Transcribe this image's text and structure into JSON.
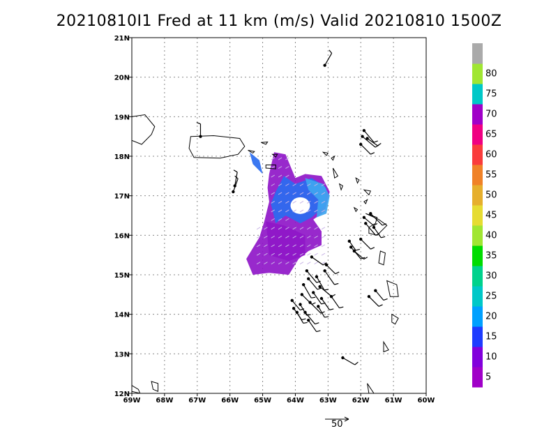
{
  "title": "20210810I1 Fred at 11 km (m/s) Valid 20210810 1500Z",
  "reference_vector_label": "50",
  "chart_data": {
    "type": "scatter",
    "title": "20210810I1 Fred at 11 km (m/s) Valid 20210810 1500Z",
    "xlabel": "",
    "ylabel": "",
    "xlim": [
      -69,
      -60
    ],
    "ylim": [
      12,
      21
    ],
    "grid": true,
    "x_ticks": [
      "69W",
      "68W",
      "67W",
      "66W",
      "65W",
      "64W",
      "63W",
      "62W",
      "61W",
      "60W"
    ],
    "y_ticks": [
      "12N",
      "13N",
      "14N",
      "15N",
      "16N",
      "17N",
      "18N",
      "19N",
      "20N",
      "21N"
    ],
    "colorbar": {
      "labels": [
        "5",
        "10",
        "15",
        "20",
        "25",
        "30",
        "35",
        "40",
        "45",
        "50",
        "55",
        "60",
        "65",
        "70",
        "75",
        "80"
      ],
      "colors": [
        "#a000c8",
        "#8200dc",
        "#1e3cff",
        "#00a0ff",
        "#00c8c8",
        "#00d28c",
        "#00dc00",
        "#a0e632",
        "#e6dc32",
        "#e6af2d",
        "#f08228",
        "#fa3c3c",
        "#f00082",
        "#a000c8",
        "#00c8c8",
        "#a0e632",
        "#aaaaaa"
      ]
    },
    "wind_field": {
      "color_main": "#8f17c8",
      "color_secondary": "#2a6cf0",
      "color_edge": "#3fa6f0"
    },
    "barb_color": "#000000",
    "coastline_color": "#000000"
  }
}
